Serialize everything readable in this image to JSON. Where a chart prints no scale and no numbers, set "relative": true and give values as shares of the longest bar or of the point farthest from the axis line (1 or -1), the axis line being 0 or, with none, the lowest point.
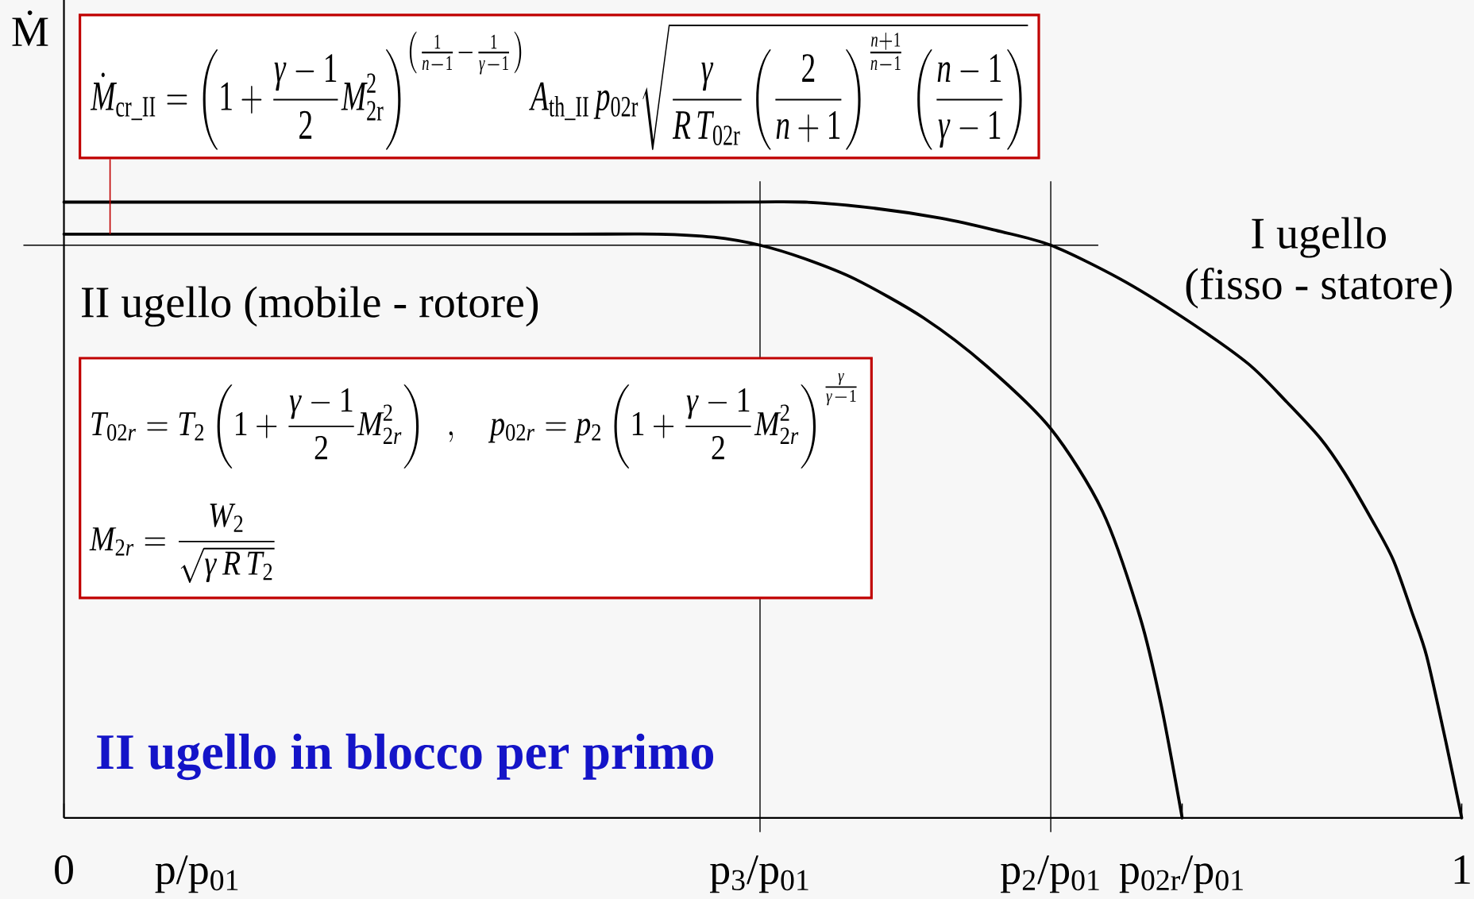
{
  "chart_data": {
    "type": "line",
    "ylabel": "Ṁ",
    "xlabel": "p/p$_{01}$",
    "xlim": [
      0,
      1
    ],
    "xticks": [
      0,
      {
        "value": 0.8,
        "label": "p$_{02r}$/p$_{01}$"
      },
      1
    ],
    "relative": true,
    "series": [
      {
        "name": "I ugello (fisso - statore)",
        "color": "#000000",
        "x": [
          0,
          0.45,
          0.53,
          0.58,
          0.627,
          0.665,
          0.706,
          0.755,
          0.801,
          0.847,
          0.875,
          0.899,
          0.916,
          0.935,
          0.951,
          0.965,
          0.975,
          0.989,
          1
        ],
        "values": [
          1,
          1,
          1,
          0.99,
          0.974,
          0.955,
          0.93,
          0.876,
          0.812,
          0.738,
          0.675,
          0.616,
          0.561,
          0.487,
          0.419,
          0.33,
          0.262,
          0.12,
          0
        ]
      },
      {
        "name": "II ugello (mobile - rotore)",
        "color": "#000000",
        "x": [
          0,
          0.36,
          0.425,
          0.465,
          0.498,
          0.53,
          0.566,
          0.615,
          0.66,
          0.706,
          0.743,
          0.77,
          0.785,
          0.8
        ],
        "values": [
          0.948,
          0.948,
          0.948,
          0.943,
          0.93,
          0.908,
          0.875,
          0.812,
          0.734,
          0.632,
          0.498,
          0.325,
          0.183,
          0
        ]
      }
    ],
    "ref_lines": [
      {
        "axis": "x",
        "value": 0.498,
        "label": "p$_{3}$/p$_{01}$"
      },
      {
        "axis": "x",
        "value": 0.706,
        "label": "p$_{2}$/p$_{01}$"
      },
      {
        "axis": "y",
        "value": 0.93
      }
    ],
    "annotations": [
      {
        "text": "\\dot{M}_{\\mathrm{cr\\_II}}=\\left(1+\\frac{\\gamma-1}{2}M_{\\mathrm{2r}}^{2}\\right)^{\\left(\\frac{1}{n-1}-\\frac{1}{\\gamma-1}\\right)}A_{\\mathrm{th\\_II}}\\,p_{\\mathrm{02r}}\\sqrt{\\frac{\\gamma}{R\\,T_{\\mathrm{02r}}}\\left(\\frac{2}{n+1}\\right)^{\\frac{n+1}{n-1}}\\left(\\frac{n-1}{\\gamma-1}\\right)}",
        "x": 0.033,
        "y": 0.948
      },
      "T_{02r}=T_{2}\\left(1+\\frac{\\gamma-1}{2}M_{2r}^{2}\\right)\\;\\;,\\quad p_{02r}=p_{2}\\left(1+\\frac{\\gamma-1}{2}M_{2r}^{2}\\right)^{\\frac{\\gamma}{\\gamma-1}}",
      "M_{2r}=\\frac{W_{2}}{\\sqrt{\\gamma\\,R\\,T_{2}}}",
      "II ugello in blocco per primo"
    ],
    "legend": false,
    "grid": false,
    "marker": "none",
    "line_style": "solid"
  }
}
